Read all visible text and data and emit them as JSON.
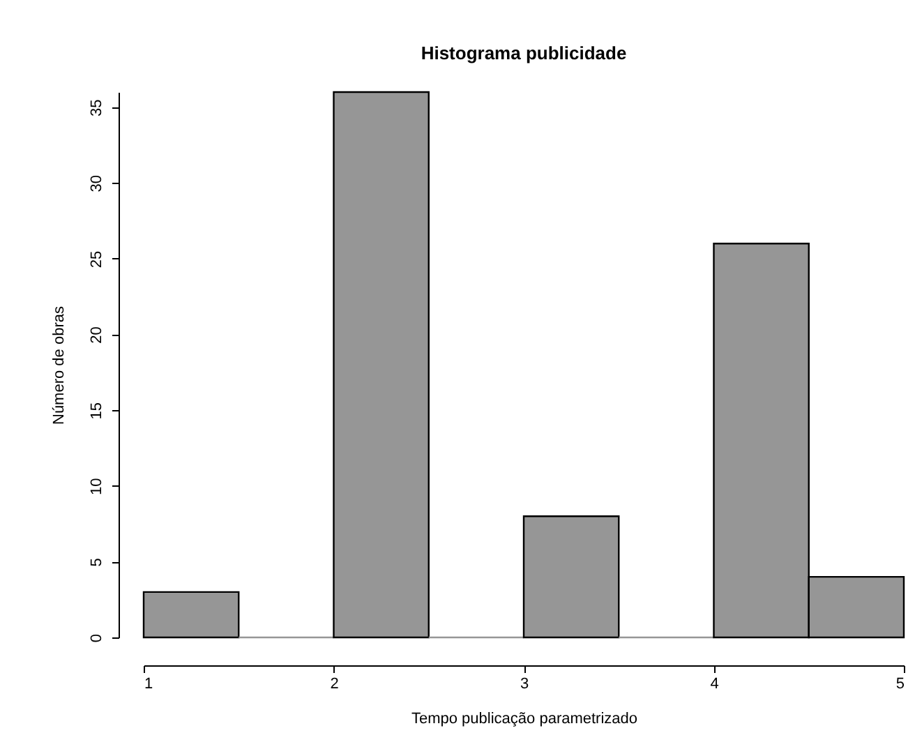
{
  "chart_data": {
    "type": "histogram",
    "title": "Histograma publicidade",
    "xlabel": "Tempo publicação parametrizado",
    "ylabel": "Número de obras",
    "bins": [
      1,
      1.5,
      2,
      2.5,
      3,
      3.5,
      4,
      4.5,
      5
    ],
    "values": [
      3,
      0,
      36,
      0,
      8,
      0,
      26,
      4
    ],
    "color": "#969696",
    "xlim": [
      1,
      5
    ],
    "xticks": [
      1,
      2,
      3,
      4,
      5
    ],
    "ylim": [
      0,
      36
    ],
    "yticks": [
      0,
      5,
      10,
      15,
      20,
      25,
      30,
      35
    ],
    "grid": false
  }
}
